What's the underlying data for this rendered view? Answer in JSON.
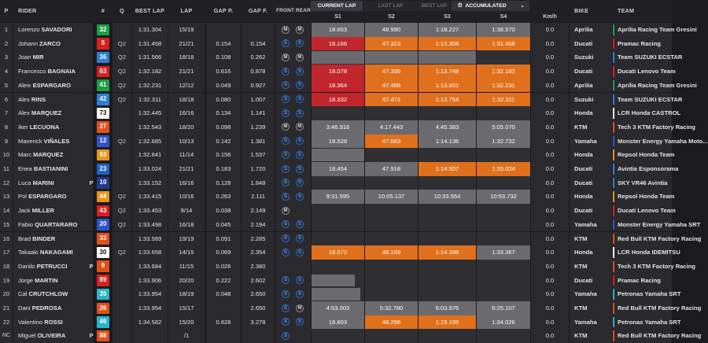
{
  "columns": {
    "pos": "P",
    "rider": "RIDER",
    "num": "#",
    "q": "Q",
    "best_lap": "BEST LAP",
    "lap": "LAP",
    "gap_p": "GAP P.",
    "gap_f": "GAP F.",
    "tyres": "FRONT REAR",
    "s1": "S1",
    "s2": "S2",
    "s3": "S3",
    "s4": "S4",
    "kmh": "Km/h",
    "bike": "BIKE",
    "team": "TEAM"
  },
  "tabs": {
    "current_lap": "CURRENT LAP",
    "last_lap": "LAST LAP",
    "best_lap": "BEST LAP",
    "accumulated": "ACCUMULATED",
    "accumulated_icon": "timer-icon",
    "chevron_icon": "chevron-down-icon"
  },
  "colors": {
    "sector_best": "#c0262b",
    "sector_personal": "#e0701c",
    "sector_normal": "#6a6a6f",
    "tyre_soft": "#2b6fd6"
  },
  "riders": [
    {
      "pos": "1",
      "first": "Lorenzo",
      "last": "SAVADORI",
      "p": "",
      "num": "32",
      "numbg": "#1a9e46",
      "numfg": "#ffffff",
      "q": "",
      "best": "1:31.304",
      "lap": "15/19",
      "gapp": "",
      "gapf": "",
      "front": "M",
      "rear": "M",
      "s1": "18.653",
      "s1c": "grey",
      "s2": "48.990",
      "s2c": "grey",
      "s3": "1:18.227",
      "s3c": "grey",
      "s4": "1:38.570",
      "s4c": "grey",
      "kmh": "0.0",
      "bike": "Aprilia",
      "team": "Aprilia Racing Team Gresini",
      "tc": "#1ea34d"
    },
    {
      "pos": "2",
      "first": "Johann",
      "last": "ZARCO",
      "p": "",
      "num": "5",
      "numbg": "#d62121",
      "numfg": "#ffffff",
      "q": "Q2",
      "best": "1:31.458",
      "lap": "21/21",
      "gapp": "0.154",
      "gapf": "0.154",
      "front": "S",
      "rear": "S",
      "s1": "18.166",
      "s1c": "red",
      "s2": "47.323",
      "s2c": "orange",
      "s3": "1:13.304",
      "s3c": "orange",
      "s4": "1:31.458",
      "s4c": "orange",
      "kmh": "0.0",
      "bike": "Ducati",
      "team": "Pramac Racing",
      "tc": "#d62121"
    },
    {
      "pos": "3",
      "first": "Joan",
      "last": "MIR",
      "p": "",
      "num": "36",
      "numbg": "#2d7fd2",
      "numfg": "#ffffff",
      "q": "Q2",
      "best": "1:31.566",
      "lap": "18/18",
      "gapp": "0.108",
      "gapf": "0.262",
      "front": "M",
      "rear": "M",
      "s1": "",
      "s1c": "bar",
      "s2": "",
      "s2c": "bar",
      "s3": "",
      "s3c": "bar",
      "s4": "",
      "s4c": "empty",
      "bar": "190",
      "kmh": "0.0",
      "bike": "Suzuki",
      "team": "Team SUZUKI ECSTAR",
      "tc": "#2d7fd2"
    },
    {
      "pos": "4",
      "first": "Francesco",
      "last": "BAGNAIA",
      "p": "",
      "num": "63",
      "numbg": "#d62121",
      "numfg": "#ffffff",
      "q": "Q2",
      "best": "1:32.182",
      "lap": "21/21",
      "gapp": "0.616",
      "gapf": "0.878",
      "front": "S",
      "rear": "S",
      "s1": "18.078",
      "s1c": "red",
      "s2": "47.356",
      "s2c": "orange",
      "s3": "1:13.748",
      "s3c": "orange",
      "s4": "1:32.182",
      "s4c": "orange",
      "kmh": "0.0",
      "bike": "Ducati",
      "team": "Ducati Lenovo Team",
      "tc": "#d62121"
    },
    {
      "pos": "5",
      "first": "Aleix",
      "last": "ESPARGARO",
      "p": "",
      "num": "41",
      "numbg": "#1a9e46",
      "numfg": "#ffffff",
      "q": "Q2",
      "best": "1:32.231",
      "lap": "12/12",
      "gapp": "0.049",
      "gapf": "0.927",
      "front": "S",
      "rear": "S",
      "s1": "18.364",
      "s1c": "red",
      "s2": "47.466",
      "s2c": "orange",
      "s3": "1:13.601",
      "s3c": "orange",
      "s4": "1:32.231",
      "s4c": "orange",
      "kmh": "0.0",
      "bike": "Aprilia",
      "team": "Aprilia Racing Team Gresini",
      "tc": "#1ea34d"
    },
    {
      "pos": "6",
      "first": "Alex",
      "last": "RINS",
      "p": "",
      "num": "42",
      "numbg": "#2d7fd2",
      "numfg": "#ffffff",
      "q": "Q2",
      "best": "1:32.311",
      "lap": "18/18",
      "gapp": "0.080",
      "gapf": "1.007",
      "front": "S",
      "rear": "S",
      "s1": "18.332",
      "s1c": "red",
      "s2": "47.472",
      "s2c": "orange",
      "s3": "1:13.754",
      "s3c": "orange",
      "s4": "1:32.311",
      "s4c": "orange",
      "kmh": "0.0",
      "bike": "Suzuki",
      "team": "Team SUZUKI ECSTAR",
      "tc": "#2d7fd2"
    },
    {
      "pos": "7",
      "first": "Alex",
      "last": "MARQUEZ",
      "p": "",
      "num": "73",
      "numbg": "#ffffff",
      "numfg": "#111111",
      "q": "",
      "best": "1:32.445",
      "lap": "16/16",
      "gapp": "0.134",
      "gapf": "1.141",
      "front": "S",
      "rear": "S",
      "s1": "",
      "s1c": "empty",
      "s2": "",
      "s2c": "empty",
      "s3": "",
      "s3c": "empty",
      "s4": "",
      "s4c": "empty",
      "kmh": "0.0",
      "bike": "Honda",
      "team": "LCR Honda CASTROL",
      "tc": "#ffffff"
    },
    {
      "pos": "8",
      "first": "Iker",
      "last": "LECUONA",
      "p": "",
      "num": "27",
      "numbg": "#e0501c",
      "numfg": "#ffffff",
      "q": "",
      "best": "1:32.543",
      "lap": "18/20",
      "gapp": "0.098",
      "gapf": "1.239",
      "front": "M",
      "rear": "M",
      "s1": "3:46.916",
      "s1c": "grey",
      "s2": "4:17.443",
      "s2c": "grey",
      "s3": "4:45.383",
      "s3c": "grey",
      "s4": "5:05.070",
      "s4c": "grey",
      "kmh": "0.0",
      "bike": "KTM",
      "team": "Tech 3 KTM Factory Racing",
      "tc": "#e0501c"
    },
    {
      "pos": "9",
      "first": "Maverick",
      "last": "VIÑALES",
      "p": "",
      "num": "12",
      "numbg": "#2d55c8",
      "numfg": "#ffffff",
      "q": "Q2",
      "best": "1:32.685",
      "lap": "10/13",
      "gapp": "0.142",
      "gapf": "1.381",
      "front": "S",
      "rear": "S",
      "s1": "18.528",
      "s1c": "grey",
      "s2": "47.663",
      "s2c": "orange",
      "s3": "1:14.136",
      "s3c": "grey",
      "s4": "1:32.732",
      "s4c": "grey",
      "kmh": "0.0",
      "bike": "Yamaha",
      "team": "Monster Energy Yamaha Moto...",
      "tc": "#2d55c8"
    },
    {
      "pos": "10",
      "first": "Marc",
      "last": "MARQUEZ",
      "p": "",
      "num": "93",
      "numbg": "#e8951c",
      "numfg": "#ffffff",
      "q": "",
      "best": "1:32.841",
      "lap": "11/14",
      "gapp": "0.156",
      "gapf": "1.537",
      "front": "S",
      "rear": "S",
      "s1": "",
      "s1c": "bar",
      "s2": "",
      "s2c": "empty",
      "s3": "",
      "s3c": "empty",
      "s4": "",
      "s4c": "empty",
      "bar": "85",
      "kmh": "0.0",
      "bike": "Honda",
      "team": "Repsol Honda Team",
      "tc": "#e8951c"
    },
    {
      "pos": "11",
      "first": "Enea",
      "last": "BASTIANINI",
      "p": "",
      "num": "23",
      "numbg": "#1e62c8",
      "numfg": "#ffffff",
      "q": "",
      "best": "1:33.024",
      "lap": "21/21",
      "gapp": "0.183",
      "gapf": "1.720",
      "front": "S",
      "rear": "S",
      "s1": "18.454",
      "s1c": "grey",
      "s2": "47.918",
      "s2c": "grey",
      "s3": "1:14.507",
      "s3c": "orange",
      "s4": "1:33.024",
      "s4c": "orange",
      "kmh": "0.0",
      "bike": "Ducati",
      "team": "Avintia Esponsorama",
      "tc": "#2d7fd2"
    },
    {
      "pos": "12",
      "first": "Luca",
      "last": "MARINI",
      "p": "P",
      "num": "10",
      "numbg": "#1e3c8c",
      "numfg": "#ffffff",
      "q": "",
      "best": "1:33.152",
      "lap": "16/16",
      "gapp": "0.128",
      "gapf": "1.848",
      "front": "S",
      "rear": "S",
      "s1": "",
      "s1c": "empty",
      "s2": "",
      "s2c": "empty",
      "s3": "",
      "s3c": "empty",
      "s4": "",
      "s4c": "empty",
      "kmh": "0.0",
      "bike": "Ducati",
      "team": "SKY VR46 Avintia",
      "tc": "#2d7fd2"
    },
    {
      "pos": "13",
      "first": "Pol",
      "last": "ESPARGARO",
      "p": "",
      "num": "44",
      "numbg": "#e8951c",
      "numfg": "#ffffff",
      "q": "Q2",
      "best": "1:33.415",
      "lap": "10/16",
      "gapp": "0.263",
      "gapf": "2.111",
      "front": "S",
      "rear": "S",
      "s1": "9:31.595",
      "s1c": "grey",
      "s2": "10:05.137",
      "s2c": "grey",
      "s3": "10:33.554",
      "s3c": "grey",
      "s4": "10:53.732",
      "s4c": "grey",
      "kmh": "0.0",
      "bike": "Honda",
      "team": "Repsol Honda Team",
      "tc": "#e8951c"
    },
    {
      "pos": "14",
      "first": "Jack",
      "last": "MILLER",
      "p": "",
      "num": "43",
      "numbg": "#d62121",
      "numfg": "#ffffff",
      "q": "Q2",
      "best": "1:33.453",
      "lap": "9/14",
      "gapp": "0.038",
      "gapf": "2.149",
      "front": "M",
      "rear": "",
      "s1": "",
      "s1c": "empty",
      "s2": "",
      "s2c": "empty",
      "s3": "",
      "s3c": "empty",
      "s4": "",
      "s4c": "empty",
      "kmh": "0.0",
      "bike": "Ducati",
      "team": "Ducati Lenovo Team",
      "tc": "#d62121"
    },
    {
      "pos": "15",
      "first": "Fabio",
      "last": "QUARTARARO",
      "p": "",
      "num": "20",
      "numbg": "#2d55c8",
      "numfg": "#ffffff",
      "q": "Q2",
      "best": "1:33.498",
      "lap": "16/18",
      "gapp": "0.045",
      "gapf": "2.194",
      "front": "S",
      "rear": "S",
      "s1": "",
      "s1c": "empty",
      "s2": "",
      "s2c": "empty",
      "s3": "",
      "s3c": "empty",
      "s4": "",
      "s4c": "empty",
      "kmh": "0.0",
      "bike": "Yamaha",
      "team": "Monster Energy Yamaha SRT",
      "tc": "#2d55c8"
    },
    {
      "pos": "16",
      "first": "Brad",
      "last": "BINDER",
      "p": "",
      "num": "33",
      "numbg": "#e0501c",
      "numfg": "#ffffff",
      "q": "",
      "best": "1:33.589",
      "lap": "19/19",
      "gapp": "0.091",
      "gapf": "2.285",
      "front": "S",
      "rear": "S",
      "s1": "",
      "s1c": "empty",
      "s2": "",
      "s2c": "empty",
      "s3": "",
      "s3c": "empty",
      "s4": "",
      "s4c": "empty",
      "kmh": "0.0",
      "bike": "KTM",
      "team": "Red Bull KTM Factory Racing",
      "tc": "#e0501c"
    },
    {
      "pos": "17",
      "first": "Takaaki",
      "last": "NAKAGAMI",
      "p": "",
      "num": "30",
      "numbg": "#ffffff",
      "numfg": "#111111",
      "q": "Q2",
      "best": "1:33.658",
      "lap": "14/15",
      "gapp": "0.069",
      "gapf": "2.354",
      "front": "S",
      "rear": "S",
      "s1": "18.572",
      "s1c": "orange",
      "s2": "48.159",
      "s2c": "orange",
      "s3": "1:14.396",
      "s3c": "orange",
      "s4": "1:33.367",
      "s4c": "grey",
      "kmh": "0.0",
      "bike": "Honda",
      "team": "LCR Honda IDEMITSU",
      "tc": "#ffffff"
    },
    {
      "pos": "18",
      "first": "Danilo",
      "last": "PETRUCCI",
      "p": "P",
      "num": "9",
      "numbg": "#e0501c",
      "numfg": "#ffffff",
      "q": "",
      "best": "1:33.684",
      "lap": "11/15",
      "gapp": "0.026",
      "gapf": "2.380",
      "front": "",
      "rear": "",
      "s1": "",
      "s1c": "empty",
      "s2": "",
      "s2c": "empty",
      "s3": "",
      "s3c": "empty",
      "s4": "",
      "s4c": "empty",
      "kmh": "0.0",
      "bike": "KTM",
      "team": "Tech 3 KTM Factory Racing",
      "tc": "#e0501c"
    },
    {
      "pos": "19",
      "first": "Jorge",
      "last": "MARTIN",
      "p": "",
      "num": "89",
      "numbg": "#d62121",
      "numfg": "#ffffff",
      "q": "",
      "best": "1:33.906",
      "lap": "20/20",
      "gapp": "0.222",
      "gapf": "2.602",
      "front": "S",
      "rear": "S",
      "s1": "",
      "s1c": "bar",
      "s2": "",
      "s2c": "empty",
      "s3": "",
      "s3c": "empty",
      "s4": "",
      "s4c": "empty",
      "bar": "55",
      "kmh": "0.0",
      "bike": "Ducati",
      "team": "Pramac Racing",
      "tc": "#d62121"
    },
    {
      "pos": "20",
      "first": "Cal",
      "last": "CRUTCHLOW",
      "p": "",
      "num": "35",
      "numbg": "#2ab3c9",
      "numfg": "#ffffff",
      "q": "",
      "best": "1:33.954",
      "lap": "18/19",
      "gapp": "0.048",
      "gapf": "2.650",
      "front": "S",
      "rear": "S",
      "s1": "",
      "s1c": "bar",
      "s2": "",
      "s2c": "empty",
      "s3": "",
      "s3c": "empty",
      "s4": "",
      "s4c": "empty",
      "bar": "62",
      "kmh": "0.0",
      "bike": "Yamaha",
      "team": "Petronas Yamaha SRT",
      "tc": "#2ab3c9"
    },
    {
      "pos": "21",
      "first": "Dani",
      "last": "PEDROSA",
      "p": "",
      "num": "26",
      "numbg": "#e0501c",
      "numfg": "#ffffff",
      "q": "",
      "best": "1:33.954",
      "lap": "15/17",
      "gapp": "",
      "gapf": "2.650",
      "front": "S",
      "rear": "M",
      "s1": "4:53.003",
      "s1c": "grey",
      "s2": "5:32.780",
      "s2c": "grey",
      "s3": "6:03.976",
      "s3c": "grey",
      "s4": "6:25.107",
      "s4c": "grey",
      "kmh": "0.0",
      "bike": "KTM",
      "team": "Red Bull KTM Factory Racing",
      "tc": "#e0501c"
    },
    {
      "pos": "22",
      "first": "Valentino",
      "last": "ROSSI",
      "p": "",
      "num": "46",
      "numbg": "#2ab3c9",
      "numfg": "#ffffff",
      "q": "",
      "best": "1:34.582",
      "lap": "15/20",
      "gapp": "0.628",
      "gapf": "3.278",
      "front": "S",
      "rear": "S",
      "s1": "18.803",
      "s1c": "grey",
      "s2": "48.296",
      "s2c": "orange",
      "s3": "1:15.195",
      "s3c": "orange",
      "s4": "1:34.026",
      "s4c": "grey",
      "kmh": "0.0",
      "bike": "Yamaha",
      "team": "Petronas Yamaha SRT",
      "tc": "#2ab3c9"
    },
    {
      "pos": "NC",
      "first": "Miguel",
      "last": "OLIVEIRA",
      "p": "P",
      "num": "88",
      "numbg": "#e0501c",
      "numfg": "#ffffff",
      "q": "",
      "best": "",
      "lap": "/1",
      "gapp": "",
      "gapf": "",
      "front": "S",
      "rear": "",
      "s1": "",
      "s1c": "empty",
      "s2": "",
      "s2c": "empty",
      "s3": "",
      "s3c": "empty",
      "s4": "",
      "s4c": "empty",
      "kmh": "0.0",
      "bike": "KTM",
      "team": "Red Bull KTM Factory Racing",
      "tc": "#e0501c"
    }
  ]
}
